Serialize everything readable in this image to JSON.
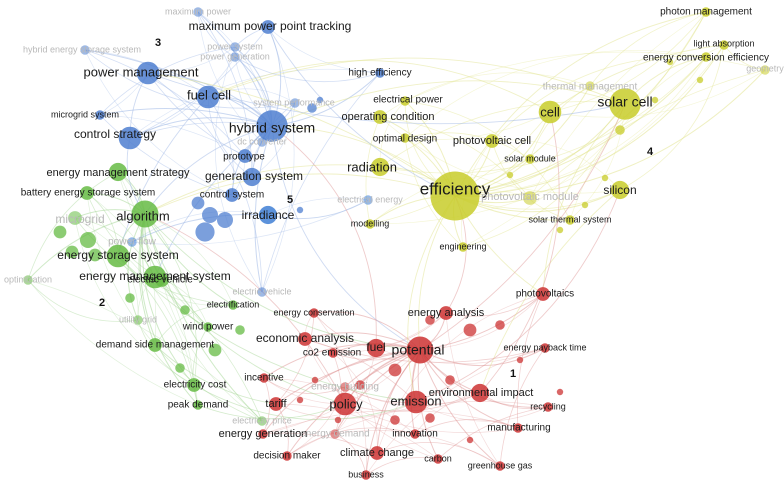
{
  "colors": {
    "cluster1": "#cc3333",
    "cluster2": "#66bb44",
    "cluster3": "#4f7fd0",
    "cluster4": "#c8cc2a",
    "cluster5": "#3f7fd5",
    "faded_label": "#b9b9b9",
    "edge1": "#e09a9a",
    "edge2": "#a9d89a",
    "edge3": "#9fb8e6",
    "edge4": "#e2e48f"
  },
  "cluster_numbers": [
    {
      "id": "c1",
      "text": "1"
    },
    {
      "id": "c2",
      "text": "2"
    },
    {
      "id": "c3",
      "text": "3"
    },
    {
      "id": "c4",
      "text": "4"
    },
    {
      "id": "c5",
      "text": "5"
    }
  ],
  "nodes": [
    {
      "id": "efficiency",
      "label": "efficiency",
      "cluster": 4,
      "weight": 10
    },
    {
      "id": "solar_cell",
      "label": "solar cell",
      "cluster": 4,
      "weight": 6
    },
    {
      "id": "cell",
      "label": "cell",
      "cluster": 4,
      "weight": 4
    },
    {
      "id": "silicon",
      "label": "silicon",
      "cluster": 4,
      "weight": 3
    },
    {
      "id": "radiation",
      "label": "radiation",
      "cluster": 4,
      "weight": 3
    },
    {
      "id": "photon_management",
      "label": "photon management",
      "cluster": 4,
      "weight": 1
    },
    {
      "id": "light_absorption",
      "label": "light absorption",
      "cluster": 4,
      "weight": 1
    },
    {
      "id": "energy_conversion_efficiency",
      "label": "energy conversion efficiency",
      "cluster": 4,
      "weight": 1
    },
    {
      "id": "thermal_management",
      "label": "thermal management",
      "cluster": 4,
      "weight": 1,
      "faded": true
    },
    {
      "id": "geometry",
      "label": "geometry",
      "cluster": 4,
      "weight": 1,
      "faded": true
    },
    {
      "id": "photovoltaic_cell",
      "label": "photovoltaic cell",
      "cluster": 4,
      "weight": 2
    },
    {
      "id": "solar_module",
      "label": "solar module",
      "cluster": 4,
      "weight": 1
    },
    {
      "id": "photovoltaic_module",
      "label": "photovoltaic module",
      "cluster": 4,
      "weight": 2,
      "faded": true
    },
    {
      "id": "solar_thermal_system",
      "label": "solar thermal system",
      "cluster": 4,
      "weight": 1
    },
    {
      "id": "optimal_design",
      "label": "optimal design",
      "cluster": 4,
      "weight": 1
    },
    {
      "id": "operating_condition",
      "label": "operating condition",
      "cluster": 4,
      "weight": 2
    },
    {
      "id": "electrical_power",
      "label": "electrical power",
      "cluster": 4,
      "weight": 1
    },
    {
      "id": "engineering",
      "label": "engineering",
      "cluster": 4,
      "weight": 1
    },
    {
      "id": "modelling",
      "label": "modelling",
      "cluster": 4,
      "weight": 1
    },
    {
      "id": "hybrid_system",
      "label": "hybrid system",
      "cluster": 3,
      "weight": 6
    },
    {
      "id": "fuel_cell",
      "label": "fuel cell",
      "cluster": 3,
      "weight": 4
    },
    {
      "id": "power_management",
      "label": "power management",
      "cluster": 3,
      "weight": 4
    },
    {
      "id": "control_strategy",
      "label": "control strategy",
      "cluster": 3,
      "weight": 4
    },
    {
      "id": "generation_system",
      "label": "generation system",
      "cluster": 3,
      "weight": 3
    },
    {
      "id": "prototype",
      "label": "prototype",
      "cluster": 3,
      "weight": 2
    },
    {
      "id": "maximum_power_point_tracking",
      "label": "maximum power point tracking",
      "cluster": 3,
      "weight": 2
    },
    {
      "id": "maximum_power",
      "label": "maximum power",
      "cluster": 3,
      "weight": 1,
      "faded": true
    },
    {
      "id": "hybrid_energy_storage_system",
      "label": "hybrid energy storage system",
      "cluster": 3,
      "weight": 1,
      "faded": true
    },
    {
      "id": "power_system",
      "label": "power system",
      "cluster": 3,
      "weight": 1,
      "faded": true
    },
    {
      "id": "power_generation",
      "label": "power generation",
      "cluster": 3,
      "weight": 1,
      "faded": true
    },
    {
      "id": "system_performance",
      "label": "system performance",
      "cluster": 3,
      "weight": 1,
      "faded": true
    },
    {
      "id": "microgrid_system",
      "label": "microgrid system",
      "cluster": 3,
      "weight": 1
    },
    {
      "id": "high_efficiency",
      "label": "high efficiency",
      "cluster": 3,
      "weight": 1
    },
    {
      "id": "dc_converter",
      "label": "dc converter",
      "cluster": 3,
      "weight": 1,
      "faded": true
    },
    {
      "id": "control_system",
      "label": "control system",
      "cluster": 3,
      "weight": 2
    },
    {
      "id": "electric_vehicle_blue",
      "label": "electric vehicle",
      "cluster": 3,
      "weight": 1,
      "faded": true
    },
    {
      "id": "irradiance",
      "label": "irradiance",
      "cluster": 5,
      "weight": 3
    },
    {
      "id": "power_flow",
      "label": "power flow",
      "cluster": 5,
      "weight": 1,
      "faded": true
    },
    {
      "id": "electrical_energy",
      "label": "electrical energy",
      "cluster": 5,
      "weight": 1,
      "faded": true
    },
    {
      "id": "algorithm",
      "label": "algorithm",
      "cluster": 2,
      "weight": 5
    },
    {
      "id": "energy_storage_system",
      "label": "energy storage system",
      "cluster": 2,
      "weight": 4
    },
    {
      "id": "energy_management_system",
      "label": "energy management system",
      "cluster": 2,
      "weight": 4
    },
    {
      "id": "energy_management_strategy",
      "label": "energy management strategy",
      "cluster": 2,
      "weight": 3
    },
    {
      "id": "battery_energy_storage_system",
      "label": "battery energy storage system",
      "cluster": 2,
      "weight": 2
    },
    {
      "id": "microgrid",
      "label": "microgrid",
      "cluster": 2,
      "weight": 2,
      "faded": true
    },
    {
      "id": "optimization",
      "label": "optimization",
      "cluster": 2,
      "weight": 1,
      "faded": true
    },
    {
      "id": "electric_vehicle",
      "label": "electric vehicle",
      "cluster": 2,
      "weight": 2
    },
    {
      "id": "electrification",
      "label": "electrification",
      "cluster": 2,
      "weight": 1
    },
    {
      "id": "utility_grid",
      "label": "utility grid",
      "cluster": 2,
      "weight": 1,
      "faded": true
    },
    {
      "id": "wind_power",
      "label": "wind power",
      "cluster": 2,
      "weight": 1
    },
    {
      "id": "demand_side_management",
      "label": "demand side management",
      "cluster": 2,
      "weight": 2
    },
    {
      "id": "electricity_cost",
      "label": "electricity cost",
      "cluster": 2,
      "weight": 2
    },
    {
      "id": "peak_demand",
      "label": "peak demand",
      "cluster": 2,
      "weight": 1
    },
    {
      "id": "electricity_price",
      "label": "electricity price",
      "cluster": 2,
      "weight": 1,
      "faded": true
    },
    {
      "id": "potential",
      "label": "potential",
      "cluster": 1,
      "weight": 5
    },
    {
      "id": "fuel",
      "label": "fuel",
      "cluster": 1,
      "weight": 3
    },
    {
      "id": "emission",
      "label": "emission",
      "cluster": 1,
      "weight": 4
    },
    {
      "id": "policy",
      "label": "policy",
      "cluster": 1,
      "weight": 4
    },
    {
      "id": "energy_analysis",
      "label": "energy analysis",
      "cluster": 1,
      "weight": 2
    },
    {
      "id": "economic_analysis",
      "label": "economic analysis",
      "cluster": 1,
      "weight": 2
    },
    {
      "id": "environmental_impact",
      "label": "environmental impact",
      "cluster": 1,
      "weight": 3
    },
    {
      "id": "photovoltaics",
      "label": "photovoltaics",
      "cluster": 1,
      "weight": 2
    },
    {
      "id": "energy_payback_time",
      "label": "energy payback time",
      "cluster": 1,
      "weight": 1
    },
    {
      "id": "recycling",
      "label": "recycling",
      "cluster": 1,
      "weight": 1
    },
    {
      "id": "manufacturing",
      "label": "manufacturing",
      "cluster": 1,
      "weight": 1
    },
    {
      "id": "greenhouse_gas",
      "label": "greenhouse gas",
      "cluster": 1,
      "weight": 1
    },
    {
      "id": "carbon",
      "label": "carbon",
      "cluster": 1,
      "weight": 1
    },
    {
      "id": "innovation",
      "label": "innovation",
      "cluster": 1,
      "weight": 1
    },
    {
      "id": "climate_change",
      "label": "climate change",
      "cluster": 1,
      "weight": 2
    },
    {
      "id": "business",
      "label": "business",
      "cluster": 1,
      "weight": 1
    },
    {
      "id": "decision_maker",
      "label": "decision maker",
      "cluster": 1,
      "weight": 1
    },
    {
      "id": "energy_generation",
      "label": "energy generation",
      "cluster": 1,
      "weight": 1
    },
    {
      "id": "energy_demand",
      "label": "energy demand",
      "cluster": 1,
      "weight": 1,
      "faded": true
    },
    {
      "id": "tariff",
      "label": "tariff",
      "cluster": 1,
      "weight": 2
    },
    {
      "id": "incentive",
      "label": "incentive",
      "cluster": 1,
      "weight": 1
    },
    {
      "id": "co2_emission",
      "label": "co2 emission",
      "cluster": 1,
      "weight": 1
    },
    {
      "id": "energy_conservation",
      "label": "energy conservation",
      "cluster": 1,
      "weight": 1
    },
    {
      "id": "energy_building",
      "label": "energy building",
      "cluster": 1,
      "weight": 1,
      "faded": true
    }
  ]
}
